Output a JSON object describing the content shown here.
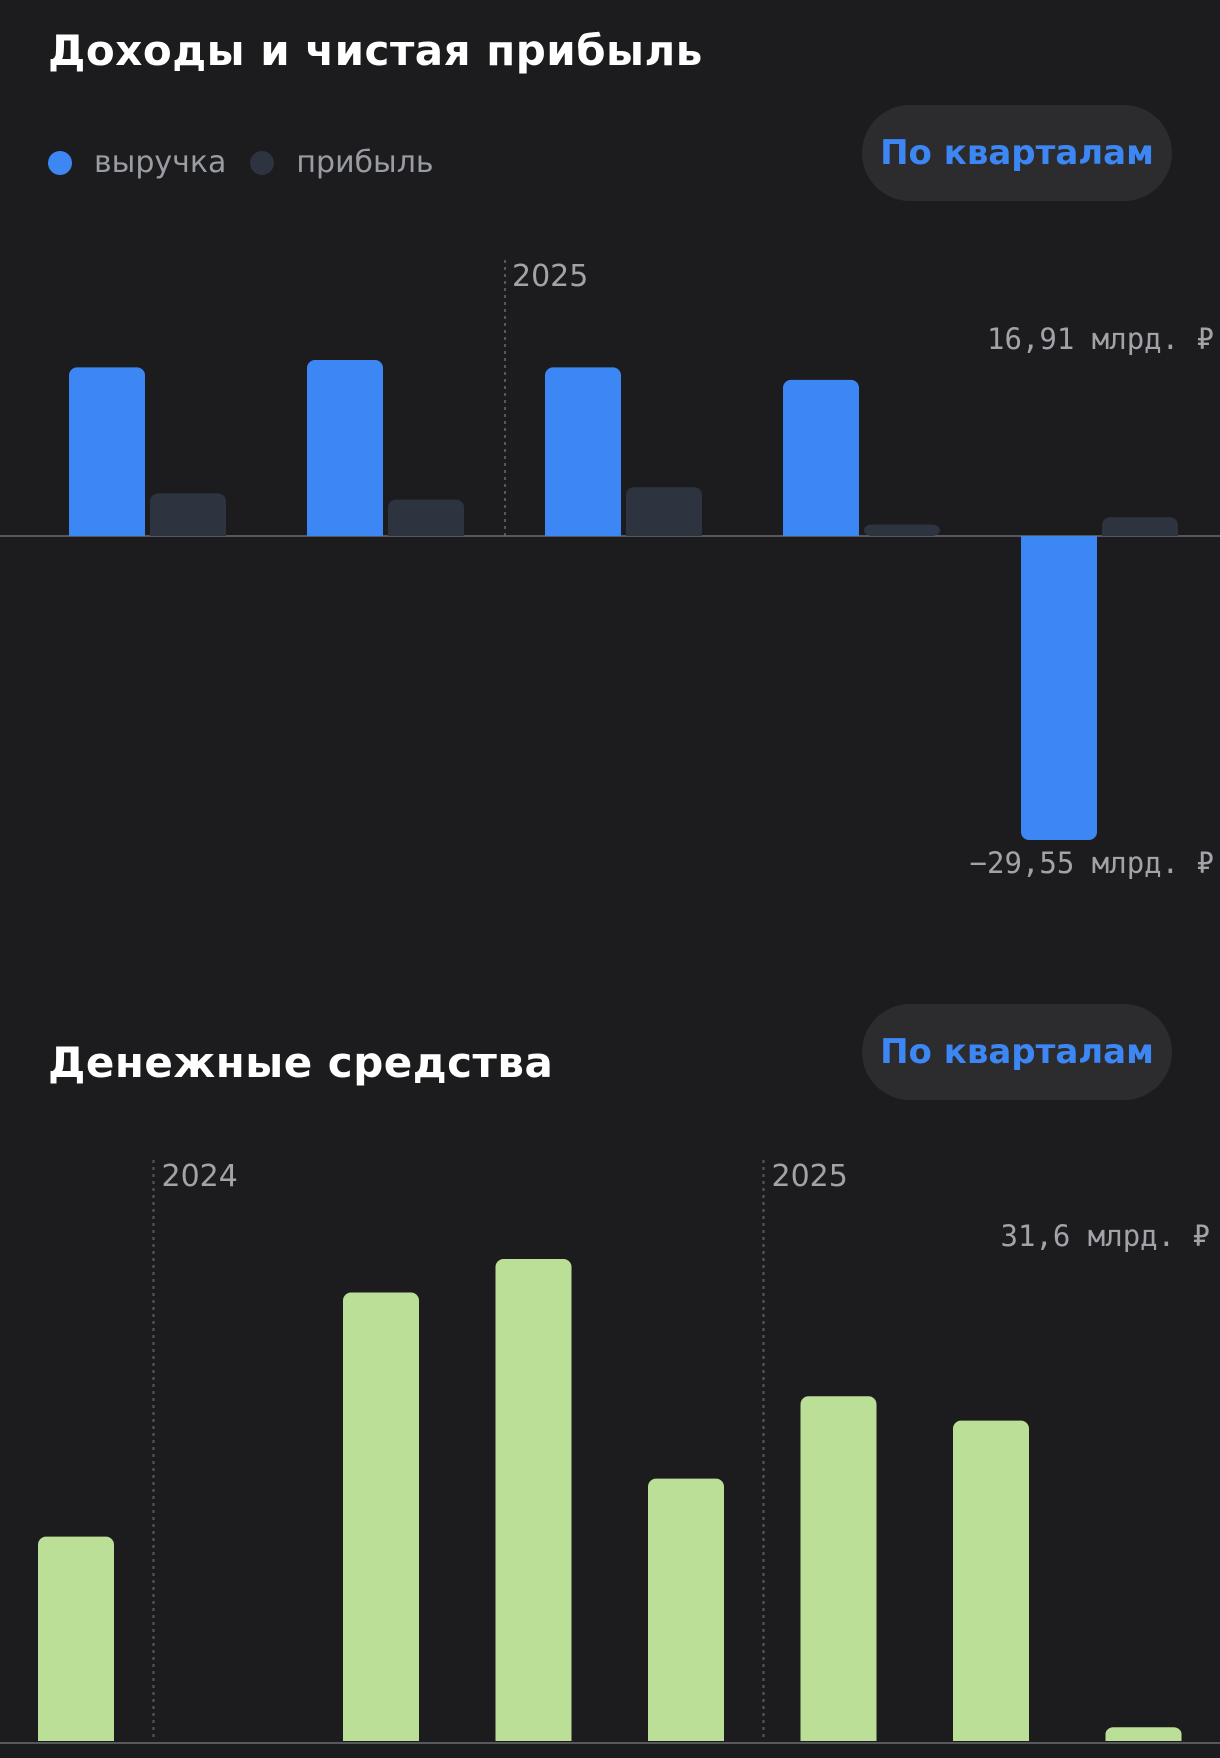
{
  "income_section": {
    "title": "Доходы и чистая прибыль",
    "toggle_label": "По кварталам",
    "legend": [
      {
        "label": "выручка",
        "color": "#3d87f5"
      },
      {
        "label": "прибыль",
        "color": "#2d333f"
      }
    ]
  },
  "cash_section": {
    "title": "Денежные средства",
    "toggle_label": "По кварталам"
  },
  "chart_data": [
    {
      "type": "bar",
      "title": "Доходы и чистая прибыль",
      "unit": "млрд. ₽",
      "max_label": "16,91 млрд. ₽",
      "min_label": "−29,55 млрд. ₽",
      "ylim": [
        -29.55,
        16.91
      ],
      "year_markers": [
        {
          "label": "2025",
          "before_index": 2
        }
      ],
      "series": [
        {
          "name": "выручка",
          "color": "#3d87f5",
          "values": [
            16.2,
            16.91,
            16.2,
            15.0,
            -29.55
          ]
        },
        {
          "name": "прибыль",
          "color": "#2d333f",
          "values": [
            4.1,
            3.5,
            4.7,
            1.1,
            1.8
          ]
        }
      ],
      "legend_position": "top-left",
      "grid": false
    },
    {
      "type": "bar",
      "title": "Денежные средства",
      "unit": "млрд. ₽",
      "max_label": "31,6 млрд. ₽",
      "ylim": [
        0,
        31.6
      ],
      "year_markers": [
        {
          "label": "2024",
          "before_index": 1
        },
        {
          "label": "2025",
          "before_index": 5
        }
      ],
      "series": [
        {
          "color": "#bbdf96",
          "values": [
            13.4,
            0,
            29.4,
            31.6,
            17.2,
            22.6,
            21.0,
            0.9
          ]
        }
      ],
      "grid": false
    }
  ]
}
